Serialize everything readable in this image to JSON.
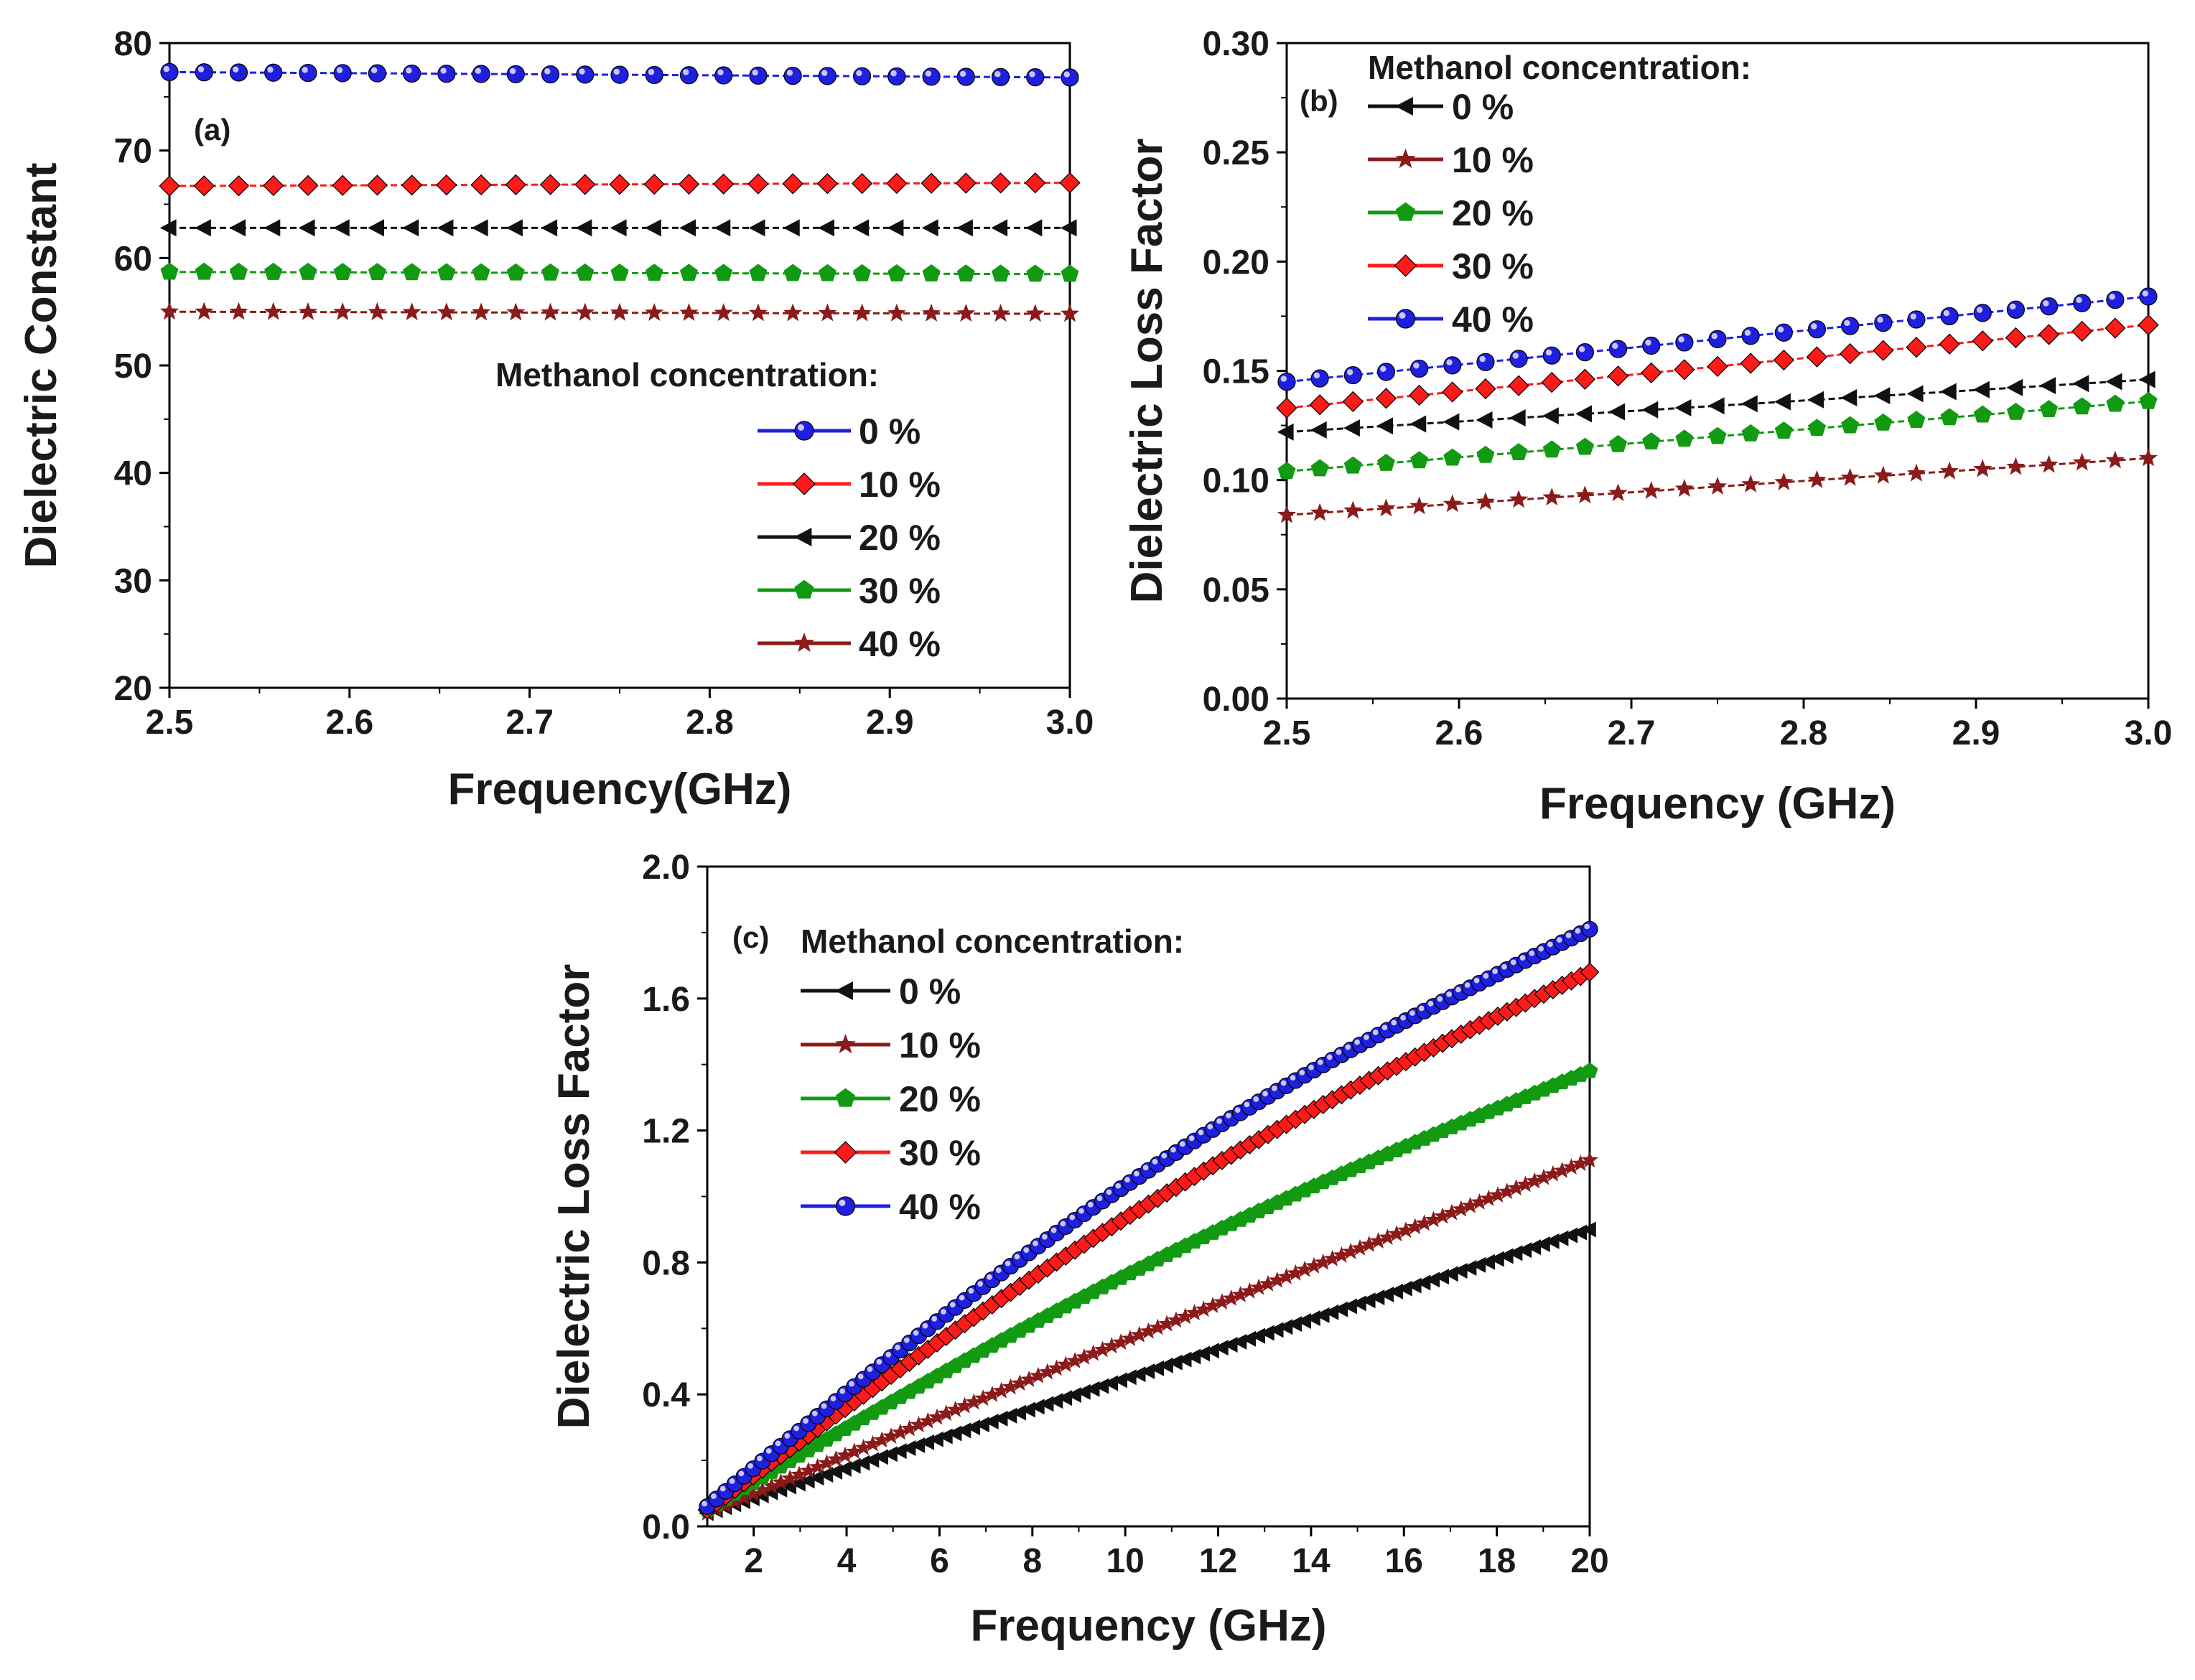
{
  "chart_data": [
    {
      "id": "a",
      "type": "line",
      "panel_label": "(a)",
      "xlabel": "Frequency(GHz)",
      "ylabel": "Dielectric Constant",
      "xlim": [
        2.5,
        3.0
      ],
      "ylim": [
        20,
        80
      ],
      "xticks": [
        2.5,
        2.6,
        2.7,
        2.8,
        2.9,
        3.0
      ],
      "xtick_labels": [
        "2.5",
        "2.6",
        "2.7",
        "2.8",
        "2.9",
        "3.0"
      ],
      "yticks": [
        20,
        30,
        40,
        50,
        60,
        70,
        80
      ],
      "ytick_labels": [
        "20",
        "30",
        "40",
        "50",
        "60",
        "70",
        "80"
      ],
      "grid": false,
      "legend_title": "Methanol concentration:",
      "legend_position": "lower-right",
      "x_start": 2.5,
      "x_end": 3.0,
      "n_points": 27,
      "series": [
        {
          "name": "0 %",
          "color": "#1f1fe0",
          "marker": "circle",
          "y_start": 77.3,
          "y_end": 76.8
        },
        {
          "name": "10 %",
          "color": "#ff1a1a",
          "marker": "diamond",
          "y_start": 66.7,
          "y_end": 67.0
        },
        {
          "name": "20 %",
          "color": "#111111",
          "marker": "triangle-left",
          "y_start": 62.8,
          "y_end": 62.8
        },
        {
          "name": "30 %",
          "color": "#129a12",
          "marker": "pentagon",
          "y_start": 58.7,
          "y_end": 58.5
        },
        {
          "name": "40 %",
          "color": "#8b1a1a",
          "marker": "star",
          "y_start": 55.0,
          "y_end": 54.8
        }
      ]
    },
    {
      "id": "b",
      "type": "line",
      "panel_label": "(b)",
      "xlabel": "Frequency (GHz)",
      "ylabel": "Dielectric Loss Factor",
      "xlim": [
        2.5,
        3.0
      ],
      "ylim": [
        0,
        0.3
      ],
      "xticks": [
        2.5,
        2.6,
        2.7,
        2.8,
        2.9,
        3.0
      ],
      "xtick_labels": [
        "2.5",
        "2.6",
        "2.7",
        "2.8",
        "2.9",
        "3.0"
      ],
      "yticks": [
        0,
        0.05,
        0.1,
        0.15,
        0.2,
        0.25,
        0.3
      ],
      "ytick_labels": [
        "0.00",
        "0.05",
        "0.10",
        "0.15",
        "0.20",
        "0.25",
        "0.30"
      ],
      "grid": false,
      "legend_title": "Methanol concentration:",
      "legend_position": "top-left",
      "x_start": 2.5,
      "x_end": 3.0,
      "n_points": 27,
      "series": [
        {
          "name": "0 %",
          "color": "#111111",
          "marker": "triangle-left",
          "y_start": 0.122,
          "y_end": 0.146
        },
        {
          "name": "10 %",
          "color": "#8b1a1a",
          "marker": "star",
          "y_start": 0.084,
          "y_end": 0.11
        },
        {
          "name": "20 %",
          "color": "#129a12",
          "marker": "pentagon",
          "y_start": 0.104,
          "y_end": 0.136
        },
        {
          "name": "30 %",
          "color": "#ff1a1a",
          "marker": "diamond",
          "y_start": 0.133,
          "y_end": 0.171
        },
        {
          "name": "40 %",
          "color": "#1f1fe0",
          "marker": "circle",
          "y_start": 0.145,
          "y_end": 0.184
        }
      ]
    },
    {
      "id": "c",
      "type": "line",
      "panel_label": "(c)",
      "xlabel": "Frequency (GHz)",
      "ylabel": "Dielectric Loss Factor",
      "xlim": [
        1,
        20
      ],
      "ylim": [
        0,
        2.0
      ],
      "xticks": [
        2,
        4,
        6,
        8,
        10,
        12,
        14,
        16,
        18,
        20
      ],
      "xtick_labels": [
        "2",
        "4",
        "6",
        "8",
        "10",
        "12",
        "14",
        "16",
        "18",
        "20"
      ],
      "yticks": [
        0,
        0.4,
        0.8,
        1.2,
        1.6,
        2.0
      ],
      "ytick_labels": [
        "0.0",
        "0.4",
        "0.8",
        "1.2",
        "1.6",
        "2.0"
      ],
      "grid": false,
      "legend_title": "Methanol concentration:",
      "legend_position": "top-left",
      "x_start": 1,
      "x_end": 20,
      "n_points": 97,
      "series": [
        {
          "name": "0 %",
          "color": "#111111",
          "marker": "triangle-left",
          "y_start": 0.04,
          "y_end": 0.9,
          "curve": 0.0
        },
        {
          "name": "10 %",
          "color": "#8b1a1a",
          "marker": "star",
          "y_start": 0.04,
          "y_end": 1.11,
          "curve": 0.02
        },
        {
          "name": "20 %",
          "color": "#129a12",
          "marker": "pentagon",
          "y_start": 0.05,
          "y_end": 1.38,
          "curve": 0.1
        },
        {
          "name": "30 %",
          "color": "#ff1a1a",
          "marker": "diamond",
          "y_start": 0.05,
          "y_end": 1.68,
          "curve": 0.14
        },
        {
          "name": "40 %",
          "color": "#1f1fe0",
          "marker": "circle",
          "y_start": 0.06,
          "y_end": 1.81,
          "curve": 0.18
        }
      ]
    }
  ]
}
